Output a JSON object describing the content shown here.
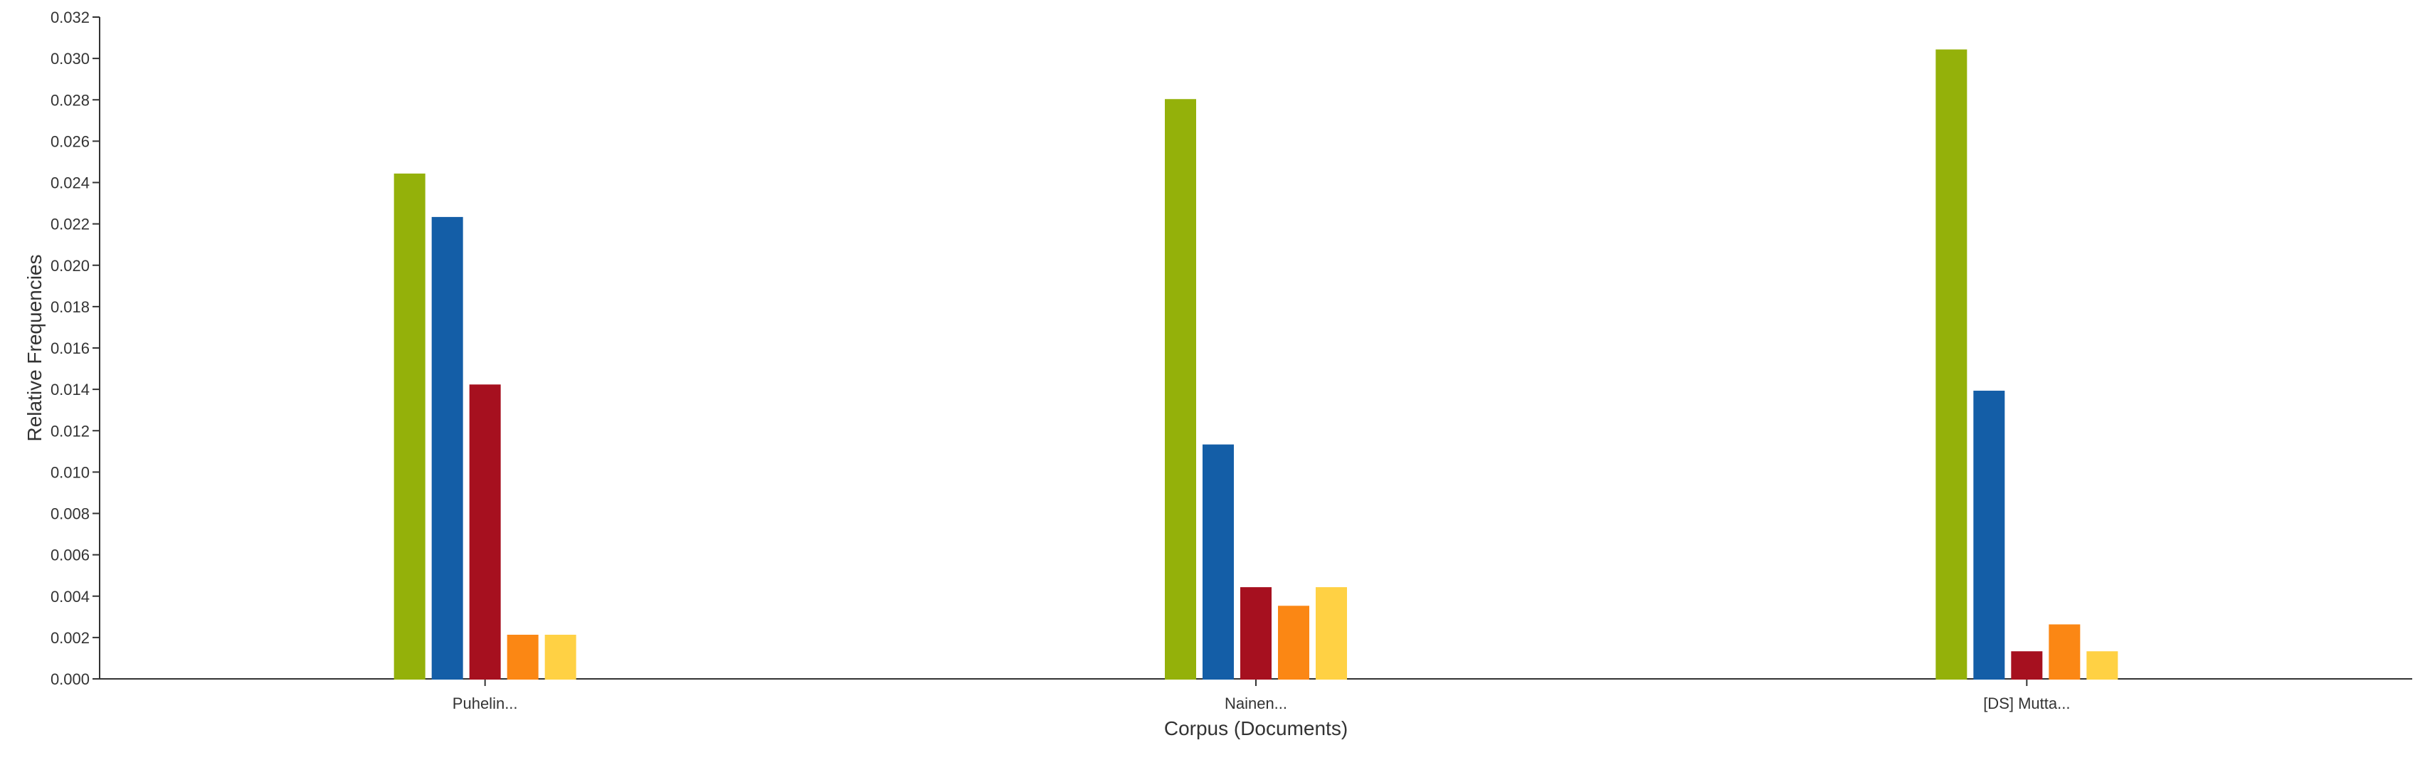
{
  "chart_data": {
    "type": "bar",
    "title": "",
    "xlabel": "Corpus (Documents)",
    "ylabel": "Relative Frequencies",
    "categories": [
      "Puhelin...",
      "Nainen...",
      "[DS] Mutta..."
    ],
    "series": [
      {
        "color": "#94b10a",
        "values": [
          0.0244,
          0.028,
          0.0304
        ]
      },
      {
        "color": "#145ea7",
        "values": [
          0.0223,
          0.0113,
          0.0139
        ]
      },
      {
        "color": "#a6101f",
        "values": [
          0.0142,
          0.0044,
          0.0013
        ]
      },
      {
        "color": "#fb8714",
        "values": [
          0.0021,
          0.0035,
          0.0026
        ]
      },
      {
        "color": "#ffd144",
        "values": [
          0.0021,
          0.0044,
          0.0013
        ]
      }
    ],
    "ylim": [
      0,
      0.032
    ],
    "yticks": [
      "0.000",
      "0.002",
      "0.004",
      "0.006",
      "0.008",
      "0.010",
      "0.012",
      "0.014",
      "0.016",
      "0.018",
      "0.020",
      "0.022",
      "0.024",
      "0.026",
      "0.028",
      "0.030",
      "0.032"
    ],
    "grid": false,
    "legend": "none"
  }
}
